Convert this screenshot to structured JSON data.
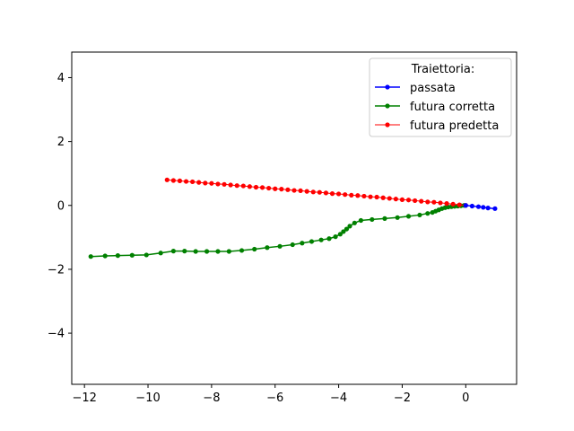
{
  "chart_data": {
    "type": "line",
    "title": "",
    "xlabel": "",
    "ylabel": "",
    "xlim": [
      -12.4,
      1.6
    ],
    "ylim": [
      -5.6,
      4.8
    ],
    "xticks": [
      -12,
      -10,
      -8,
      -6,
      -4,
      -2,
      0
    ],
    "yticks": [
      -4,
      -2,
      0,
      2,
      4
    ],
    "xtick_labels": [
      "−12",
      "−10",
      "−8",
      "−6",
      "−4",
      "−2",
      "0"
    ],
    "ytick_labels": [
      "−4",
      "−2",
      "0",
      "2",
      "4"
    ],
    "grid": false,
    "legend": {
      "title": "Traiettoria:",
      "placement": "top-right"
    },
    "series": [
      {
        "name": "passata",
        "color": "#0000ff",
        "x": [
          0.0,
          0.2,
          0.4,
          0.55,
          0.7,
          0.92
        ],
        "y": [
          0.0,
          -0.02,
          -0.04,
          -0.06,
          -0.08,
          -0.1
        ]
      },
      {
        "name": "futura corretta",
        "color": "#008000",
        "x": [
          -11.8,
          -11.35,
          -10.95,
          -10.5,
          -10.05,
          -9.6,
          -9.2,
          -8.85,
          -8.5,
          -8.15,
          -7.8,
          -7.45,
          -7.05,
          -6.65,
          -6.25,
          -5.85,
          -5.45,
          -5.15,
          -4.85,
          -4.55,
          -4.3,
          -4.1,
          -3.95,
          -3.85,
          -3.75,
          -3.65,
          -3.5,
          -3.3,
          -2.95,
          -2.55,
          -2.15,
          -1.8,
          -1.45,
          -1.2,
          -1.05,
          -0.95,
          -0.85,
          -0.75,
          -0.65,
          -0.55,
          -0.45,
          -0.35,
          -0.25,
          -0.15,
          -0.05
        ],
        "y": [
          -1.6,
          -1.58,
          -1.57,
          -1.56,
          -1.55,
          -1.49,
          -1.43,
          -1.43,
          -1.44,
          -1.44,
          -1.44,
          -1.44,
          -1.41,
          -1.37,
          -1.32,
          -1.28,
          -1.23,
          -1.18,
          -1.13,
          -1.08,
          -1.04,
          -0.98,
          -0.9,
          -0.82,
          -0.74,
          -0.65,
          -0.55,
          -0.47,
          -0.44,
          -0.41,
          -0.38,
          -0.34,
          -0.3,
          -0.25,
          -0.22,
          -0.18,
          -0.14,
          -0.1,
          -0.07,
          -0.05,
          -0.04,
          -0.03,
          -0.02,
          -0.01,
          0.0
        ]
      },
      {
        "name": "futura predetta",
        "color": "#ff0000",
        "x": [
          -9.4,
          -9.2,
          -9.0,
          -8.8,
          -8.6,
          -8.4,
          -8.2,
          -8.0,
          -7.8,
          -7.6,
          -7.4,
          -7.2,
          -7.0,
          -6.8,
          -6.6,
          -6.4,
          -6.2,
          -6.0,
          -5.8,
          -5.6,
          -5.4,
          -5.2,
          -5.0,
          -4.8,
          -4.6,
          -4.4,
          -4.2,
          -4.0,
          -3.8,
          -3.6,
          -3.4,
          -3.2,
          -3.0,
          -2.8,
          -2.6,
          -2.4,
          -2.2,
          -2.0,
          -1.8,
          -1.6,
          -1.4,
          -1.2,
          -1.0,
          -0.8,
          -0.6,
          -0.4,
          -0.2,
          0.0
        ],
        "y": [
          0.8,
          0.78,
          0.77,
          0.75,
          0.74,
          0.72,
          0.7,
          0.69,
          0.67,
          0.66,
          0.64,
          0.62,
          0.61,
          0.59,
          0.57,
          0.56,
          0.54,
          0.52,
          0.51,
          0.49,
          0.47,
          0.46,
          0.44,
          0.42,
          0.41,
          0.39,
          0.37,
          0.36,
          0.34,
          0.32,
          0.31,
          0.29,
          0.27,
          0.26,
          0.24,
          0.22,
          0.2,
          0.18,
          0.17,
          0.15,
          0.13,
          0.11,
          0.1,
          0.08,
          0.06,
          0.04,
          0.02,
          0.0
        ]
      }
    ]
  }
}
